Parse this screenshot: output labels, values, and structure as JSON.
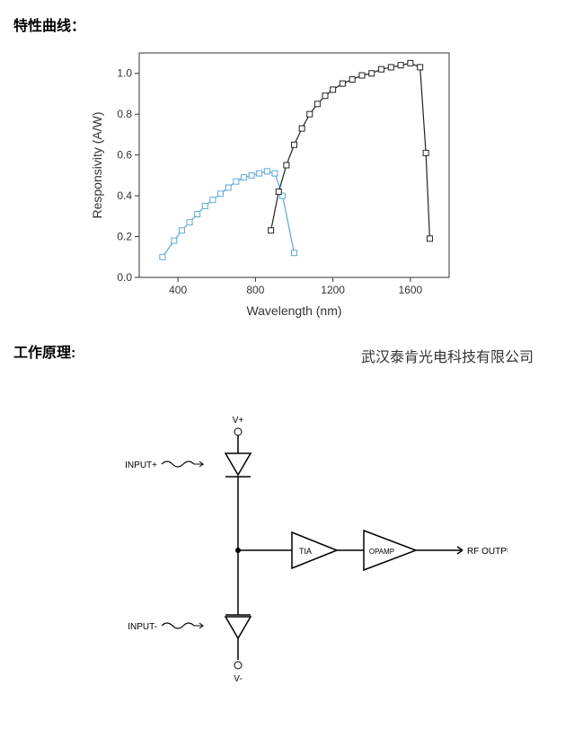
{
  "sections": {
    "chart_title": "特性曲线：",
    "diagram_title": "工作原理:",
    "watermark": "武汉泰肯光电科技有限公司"
  },
  "chart": {
    "type": "line-scatter",
    "xlabel": "Wavelength (nm)",
    "ylabel": "Responsivity (A/W)",
    "xlim": [
      200,
      1800
    ],
    "ylim": [
      0.0,
      1.1
    ],
    "xtick_step": 400,
    "ytick_step": 0.2,
    "xticks": [
      400,
      800,
      1200,
      1600
    ],
    "yticks": [
      0.0,
      0.2,
      0.4,
      0.6,
      0.8,
      1.0
    ],
    "background_color": "#ffffff",
    "border_color": "#333333",
    "grid_color": "#cccccc",
    "label_fontsize": 14,
    "tick_fontsize": 12,
    "marker": "square",
    "marker_size": 6,
    "series": [
      {
        "name": "series-blue",
        "color": "#5aa9d6",
        "line_width": 1.2,
        "data": [
          [
            320,
            0.1
          ],
          [
            380,
            0.18
          ],
          [
            420,
            0.23
          ],
          [
            460,
            0.27
          ],
          [
            500,
            0.31
          ],
          [
            540,
            0.35
          ],
          [
            580,
            0.38
          ],
          [
            620,
            0.41
          ],
          [
            660,
            0.44
          ],
          [
            700,
            0.47
          ],
          [
            740,
            0.49
          ],
          [
            780,
            0.5
          ],
          [
            820,
            0.51
          ],
          [
            860,
            0.52
          ],
          [
            900,
            0.51
          ],
          [
            940,
            0.4
          ],
          [
            1000,
            0.12
          ]
        ]
      },
      {
        "name": "series-black",
        "color": "#222222",
        "line_width": 1.2,
        "data": [
          [
            880,
            0.23
          ],
          [
            920,
            0.42
          ],
          [
            960,
            0.55
          ],
          [
            1000,
            0.65
          ],
          [
            1040,
            0.73
          ],
          [
            1080,
            0.8
          ],
          [
            1120,
            0.85
          ],
          [
            1160,
            0.89
          ],
          [
            1200,
            0.92
          ],
          [
            1250,
            0.95
          ],
          [
            1300,
            0.97
          ],
          [
            1350,
            0.99
          ],
          [
            1400,
            1.0
          ],
          [
            1450,
            1.02
          ],
          [
            1500,
            1.03
          ],
          [
            1550,
            1.04
          ],
          [
            1600,
            1.05
          ],
          [
            1650,
            1.03
          ],
          [
            1680,
            0.61
          ],
          [
            1700,
            0.19
          ]
        ]
      }
    ]
  },
  "diagram": {
    "type": "schematic",
    "labels": {
      "vplus": "V+",
      "vminus": "V-",
      "input_plus": "INPUT+",
      "input_minus": "INPUT-",
      "tia": "TIA",
      "opamp": "OPAMP",
      "output": "RF OUTPUT"
    },
    "line_color": "#000000",
    "text_color": "#000000",
    "label_fontsize": 10
  }
}
